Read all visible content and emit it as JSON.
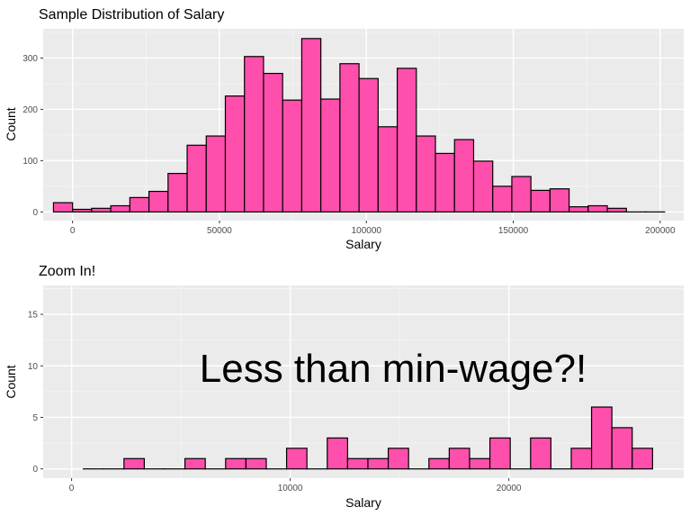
{
  "chart_data": [
    {
      "type": "bar",
      "title": "Sample Distribution of Salary",
      "xlabel": "Salary",
      "ylabel": "Count",
      "bin_width": 6500,
      "bin_centers": [
        -3250,
        3250,
        9750,
        16250,
        22750,
        29250,
        35750,
        42250,
        48750,
        55250,
        61750,
        68250,
        74750,
        81250,
        87750,
        94250,
        100750,
        107250,
        113750,
        120250,
        126750,
        133250,
        139750,
        146250,
        152750,
        159250,
        165750,
        172250,
        178750,
        185250,
        191750,
        198250
      ],
      "values": [
        18,
        5,
        7,
        12,
        28,
        40,
        75,
        130,
        148,
        226,
        303,
        270,
        218,
        338,
        220,
        289,
        260,
        166,
        280,
        148,
        114,
        141,
        99,
        50,
        69,
        42,
        45,
        10,
        12,
        7,
        0,
        0
      ],
      "xticks": [
        0,
        50000,
        100000,
        150000,
        200000
      ],
      "xtick_labels": [
        "0",
        "50000",
        "100000",
        "150000",
        "200000"
      ],
      "yticks": [
        0,
        100,
        200,
        300
      ],
      "ytick_labels": [
        "0",
        "100",
        "200",
        "300"
      ],
      "xlim": [
        -10000,
        208000
      ],
      "ylim": [
        -17,
        357
      ],
      "grid": true,
      "bar_color": "#ff4fac"
    },
    {
      "type": "bar",
      "title": "Zoom In!",
      "xlabel": "Salary",
      "ylabel": "Count",
      "annotation": "Less than min-wage?!",
      "bin_width": 930,
      "bin_centers": [
        1000,
        1930,
        2860,
        3790,
        4720,
        5650,
        6580,
        7510,
        8440,
        9370,
        10300,
        11230,
        12160,
        13090,
        14020,
        14950,
        15880,
        16810,
        17740,
        18670,
        19600,
        20530,
        21460,
        22390,
        23320,
        24250,
        25180,
        26110
      ],
      "values": [
        0,
        0,
        1,
        0,
        0,
        1,
        0,
        1,
        1,
        0,
        2,
        0,
        3,
        1,
        1,
        2,
        0,
        1,
        2,
        1,
        3,
        0,
        3,
        0,
        2,
        6,
        4,
        2
      ],
      "xticks": [
        0,
        10000,
        20000
      ],
      "xtick_labels": [
        "0",
        "10000",
        "20000"
      ],
      "yticks": [
        0,
        5,
        10,
        15
      ],
      "ytick_labels": [
        "0",
        "5",
        "10",
        "15"
      ],
      "xlim": [
        -1300,
        28000
      ],
      "ylim": [
        -0.9,
        17.8
      ],
      "grid": true,
      "bar_color": "#ff4fac"
    }
  ]
}
